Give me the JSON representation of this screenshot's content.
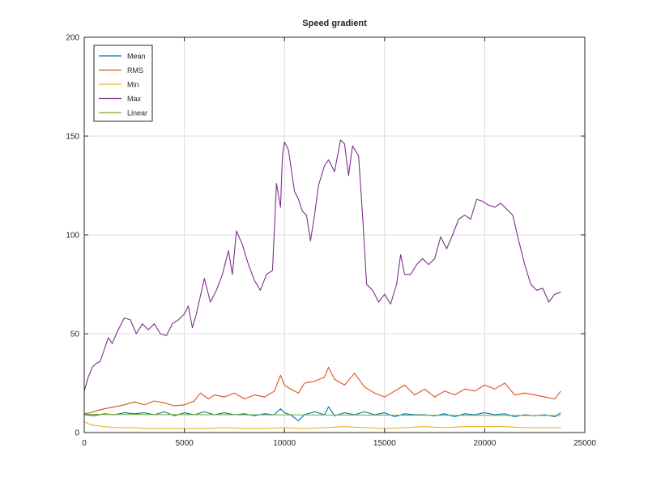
{
  "chart_data": {
    "type": "line",
    "title": "Speed gradient",
    "xlabel": "",
    "ylabel": "",
    "xlim": [
      0,
      25000
    ],
    "ylim": [
      0,
      200
    ],
    "xticks": [
      0,
      5000,
      10000,
      15000,
      20000,
      25000
    ],
    "yticks": [
      0,
      50,
      100,
      150,
      200
    ],
    "grid": true,
    "legend_position": "top-left",
    "series": [
      {
        "name": "Mean",
        "color": "#0072bd",
        "x": [
          0,
          500,
          1000,
          1500,
          2000,
          2500,
          3000,
          3500,
          4000,
          4500,
          5000,
          5500,
          6000,
          6500,
          7000,
          7500,
          8000,
          8500,
          9000,
          9500,
          9800,
          10000,
          10300,
          10700,
          11000,
          11500,
          12000,
          12200,
          12500,
          13000,
          13500,
          14000,
          14500,
          15000,
          15500,
          16000,
          16500,
          17000,
          17500,
          18000,
          18500,
          19000,
          19500,
          20000,
          20500,
          21000,
          21500,
          22000,
          22500,
          23000,
          23500,
          23800
        ],
        "values": [
          9,
          8.5,
          9.5,
          9,
          10,
          9.5,
          10,
          9,
          10.5,
          8.5,
          10,
          9,
          10.5,
          9,
          10,
          9,
          9.5,
          8.5,
          9.5,
          9,
          12,
          10,
          9,
          6,
          9,
          10.5,
          9,
          13,
          8.5,
          10,
          9,
          10.5,
          9,
          10,
          8,
          9.5,
          9,
          9,
          8.5,
          9.5,
          8,
          9.5,
          9,
          10,
          9,
          9.5,
          8,
          9,
          8.5,
          9,
          8,
          10
        ]
      },
      {
        "name": "RMS",
        "color": "#d95319",
        "x": [
          0,
          300,
          600,
          1000,
          1500,
          2000,
          2500,
          3000,
          3500,
          4000,
          4500,
          5000,
          5500,
          5800,
          6200,
          6500,
          7000,
          7500,
          8000,
          8500,
          9000,
          9500,
          9800,
          10000,
          10300,
          10700,
          11000,
          11500,
          12000,
          12200,
          12500,
          13000,
          13500,
          14000,
          14500,
          15000,
          15500,
          16000,
          16500,
          17000,
          17500,
          18000,
          18500,
          19000,
          19500,
          20000,
          20500,
          21000,
          21500,
          22000,
          22500,
          23000,
          23500,
          23800
        ],
        "values": [
          9.5,
          10,
          11,
          12,
          13,
          14,
          15.5,
          14,
          16,
          15,
          13.5,
          14,
          16,
          20,
          17,
          19,
          18,
          20,
          17,
          19,
          18,
          21,
          29,
          24,
          22,
          20,
          25,
          26,
          28,
          33,
          27,
          24,
          30,
          23,
          20,
          18,
          21,
          24,
          19,
          22,
          18,
          21,
          19,
          22,
          21,
          24,
          22,
          25,
          19,
          20,
          19,
          18,
          17,
          21
        ]
      },
      {
        "name": "Min",
        "color": "#edb120",
        "x": [
          0,
          300,
          600,
          1000,
          1500,
          2000,
          2500,
          3000,
          4000,
          5000,
          6000,
          7000,
          8000,
          9000,
          10000,
          11000,
          12000,
          13000,
          14000,
          15000,
          16000,
          17000,
          18000,
          19000,
          20000,
          21000,
          22000,
          23000,
          23800
        ],
        "values": [
          5.5,
          4,
          3.5,
          3,
          2.5,
          2.5,
          2.5,
          2,
          2,
          2,
          2,
          2.5,
          2,
          2,
          2.5,
          2,
          2.5,
          3,
          2.5,
          2,
          2.5,
          3,
          2.5,
          3,
          3,
          3,
          2.5,
          2.5,
          2.5
        ]
      },
      {
        "name": "Max",
        "color": "#7e2f8e",
        "x": [
          0,
          200,
          400,
          600,
          800,
          1000,
          1200,
          1400,
          1600,
          1800,
          2000,
          2300,
          2600,
          2900,
          3200,
          3500,
          3800,
          4100,
          4400,
          4700,
          5000,
          5200,
          5400,
          5600,
          5800,
          6000,
          6300,
          6600,
          6900,
          7200,
          7400,
          7600,
          7900,
          8200,
          8500,
          8800,
          9100,
          9400,
          9600,
          9800,
          9900,
          10000,
          10200,
          10500,
          10700,
          10900,
          11100,
          11300,
          11500,
          11700,
          12000,
          12200,
          12500,
          12800,
          13000,
          13200,
          13400,
          13700,
          13900,
          14100,
          14400,
          14700,
          15000,
          15300,
          15600,
          15800,
          16000,
          16300,
          16600,
          16900,
          17200,
          17500,
          17800,
          18100,
          18400,
          18700,
          19000,
          19300,
          19600,
          19900,
          20200,
          20500,
          20800,
          21100,
          21400,
          21700,
          22000,
          22300,
          22600,
          22900,
          23200,
          23500,
          23800
        ],
        "values": [
          21,
          28,
          33,
          35,
          36,
          42,
          48,
          45,
          50,
          54,
          58,
          57,
          50,
          55,
          52,
          55,
          50,
          49,
          55,
          57,
          60,
          64,
          53,
          60,
          69,
          78,
          66,
          72,
          80,
          92,
          80,
          102,
          95,
          85,
          77,
          72,
          80,
          82,
          126,
          114,
          140,
          147,
          143,
          122,
          118,
          112,
          110,
          97,
          110,
          125,
          135,
          138,
          132,
          148,
          146,
          130,
          145,
          140,
          110,
          75,
          72,
          66,
          70,
          65,
          75,
          90,
          80,
          80,
          85,
          88,
          85,
          88,
          99,
          93,
          100,
          108,
          110,
          108,
          118,
          117,
          115,
          114,
          116,
          113,
          110,
          97,
          85,
          75,
          72,
          73,
          66,
          70,
          71
        ]
      },
      {
        "name": "Linear",
        "color": "#77ac30",
        "x": [
          0,
          23800
        ],
        "values": [
          9.2,
          8.6
        ]
      }
    ]
  }
}
